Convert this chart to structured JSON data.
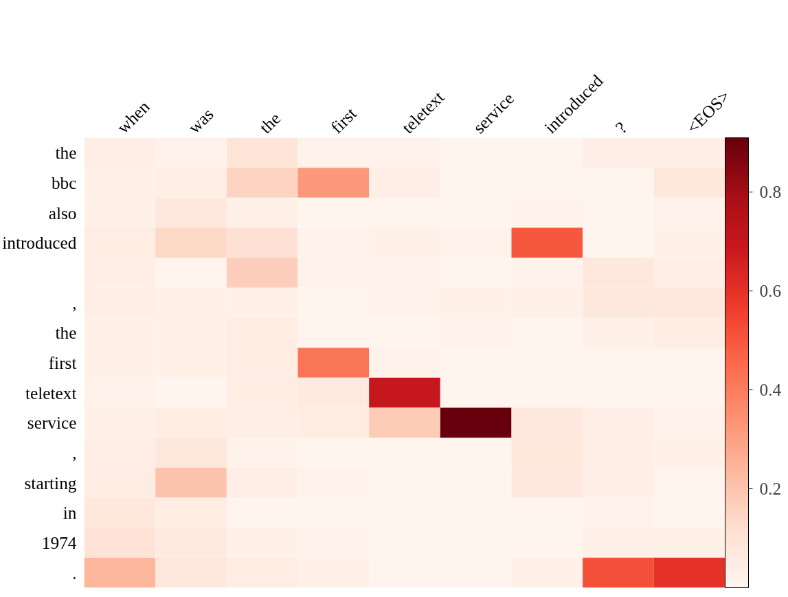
{
  "chart_data": {
    "type": "heatmap",
    "categories": [
      "when",
      "was",
      "the",
      "first",
      "teletext",
      "service",
      "introduced",
      "?",
      "<EOS>"
    ],
    "y_categories": [
      "the",
      "bbc",
      "also",
      "introduced",
      null,
      ",",
      "the",
      "first",
      "teletext",
      "service",
      ",",
      "starting",
      "in",
      "1974",
      "."
    ],
    "cells": [
      [
        0.04,
        0.02,
        0.09,
        0.02,
        0.02,
        0.01,
        0.01,
        0.04,
        0.04
      ],
      [
        0.03,
        0.04,
        0.15,
        0.32,
        0.04,
        0.01,
        0.01,
        0.01,
        0.08
      ],
      [
        0.03,
        0.07,
        0.03,
        0.01,
        0.01,
        0.01,
        0.02,
        0.01,
        0.02
      ],
      [
        0.05,
        0.14,
        0.11,
        0.02,
        0.03,
        0.02,
        0.5,
        0.01,
        0.03
      ],
      [
        0.04,
        0.01,
        0.17,
        0.02,
        0.02,
        0.01,
        0.02,
        0.07,
        0.04
      ],
      [
        0.04,
        0.03,
        0.03,
        0.01,
        0.02,
        0.03,
        0.03,
        0.07,
        0.07
      ],
      [
        0.03,
        0.03,
        0.05,
        0.01,
        0.01,
        0.02,
        0.01,
        0.03,
        0.05
      ],
      [
        0.03,
        0.03,
        0.05,
        0.42,
        0.02,
        0.01,
        0.01,
        0.01,
        0.01
      ],
      [
        0.02,
        0.01,
        0.05,
        0.06,
        0.7,
        0.01,
        0.01,
        0.01,
        0.01
      ],
      [
        0.03,
        0.05,
        0.04,
        0.05,
        0.18,
        0.91,
        0.07,
        0.04,
        0.02
      ],
      [
        0.04,
        0.08,
        0.02,
        0.01,
        0.01,
        0.01,
        0.08,
        0.04,
        0.03
      ],
      [
        0.05,
        0.2,
        0.04,
        0.02,
        0.01,
        0.01,
        0.07,
        0.04,
        0.01
      ],
      [
        0.08,
        0.05,
        0.01,
        0.01,
        0.01,
        0.01,
        0.01,
        0.02,
        0.01
      ],
      [
        0.1,
        0.06,
        0.03,
        0.02,
        0.01,
        0.01,
        0.01,
        0.03,
        0.03
      ],
      [
        0.24,
        0.07,
        0.05,
        0.03,
        0.01,
        0.01,
        0.03,
        0.52,
        0.6
      ]
    ],
    "clim": [
      0,
      0.91
    ],
    "cticks": [
      0.2,
      0.4,
      0.6,
      0.8
    ]
  }
}
